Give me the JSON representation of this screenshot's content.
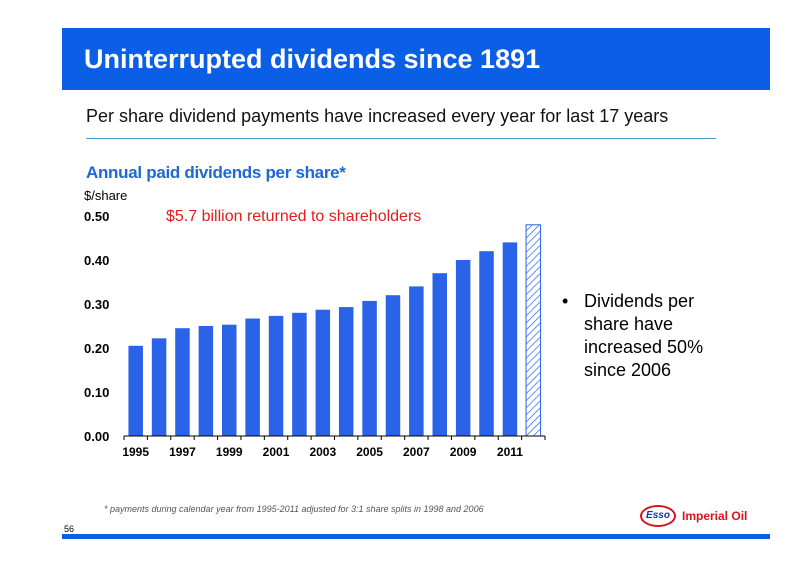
{
  "header": {
    "title": "Uninterrupted dividends since 1891",
    "subtitle": "Per share dividend payments have increased every year for last 17 years"
  },
  "chart_data": {
    "type": "bar",
    "title": "Annual paid dividends per share*",
    "ylabel": "$/share",
    "xlabel": "",
    "ylim": [
      0,
      0.5
    ],
    "yticks": [
      "0.00",
      "0.10",
      "0.20",
      "0.30",
      "0.40",
      "0.50"
    ],
    "categories": [
      "1995",
      "1996",
      "1997",
      "1998",
      "1999",
      "2000",
      "2001",
      "2002",
      "2003",
      "2004",
      "2005",
      "2006",
      "2007",
      "2008",
      "2009",
      "2010",
      "2011",
      "2012"
    ],
    "x_tick_labels": [
      "1995",
      "1997",
      "1999",
      "2001",
      "2003",
      "2005",
      "2007",
      "2009",
      "2011"
    ],
    "values": [
      0.205,
      0.222,
      0.245,
      0.25,
      0.253,
      0.267,
      0.273,
      0.28,
      0.287,
      0.293,
      0.307,
      0.32,
      0.34,
      0.37,
      0.4,
      0.42,
      0.44,
      0.48
    ],
    "hatched_categories": [
      "2012"
    ],
    "bar_color": "#2a63e8",
    "hatch_color": "#2a63e8",
    "annotation": "$5.7 billion returned to shareholders",
    "annotation_color": "#e31c1c"
  },
  "bullet": {
    "symbol": "•",
    "text": "Dividends per share have increased 50% since 2006"
  },
  "footnote": "* payments during calendar year from 1995-2011 adjusted for 3:1 share splits in 1998 and 2006",
  "page_number": "56",
  "logo": {
    "brand": "Esso",
    "company": "Imperial Oil"
  },
  "colors": {
    "title_bar": "#0b5ee6",
    "chart_title": "#1f66d6"
  }
}
